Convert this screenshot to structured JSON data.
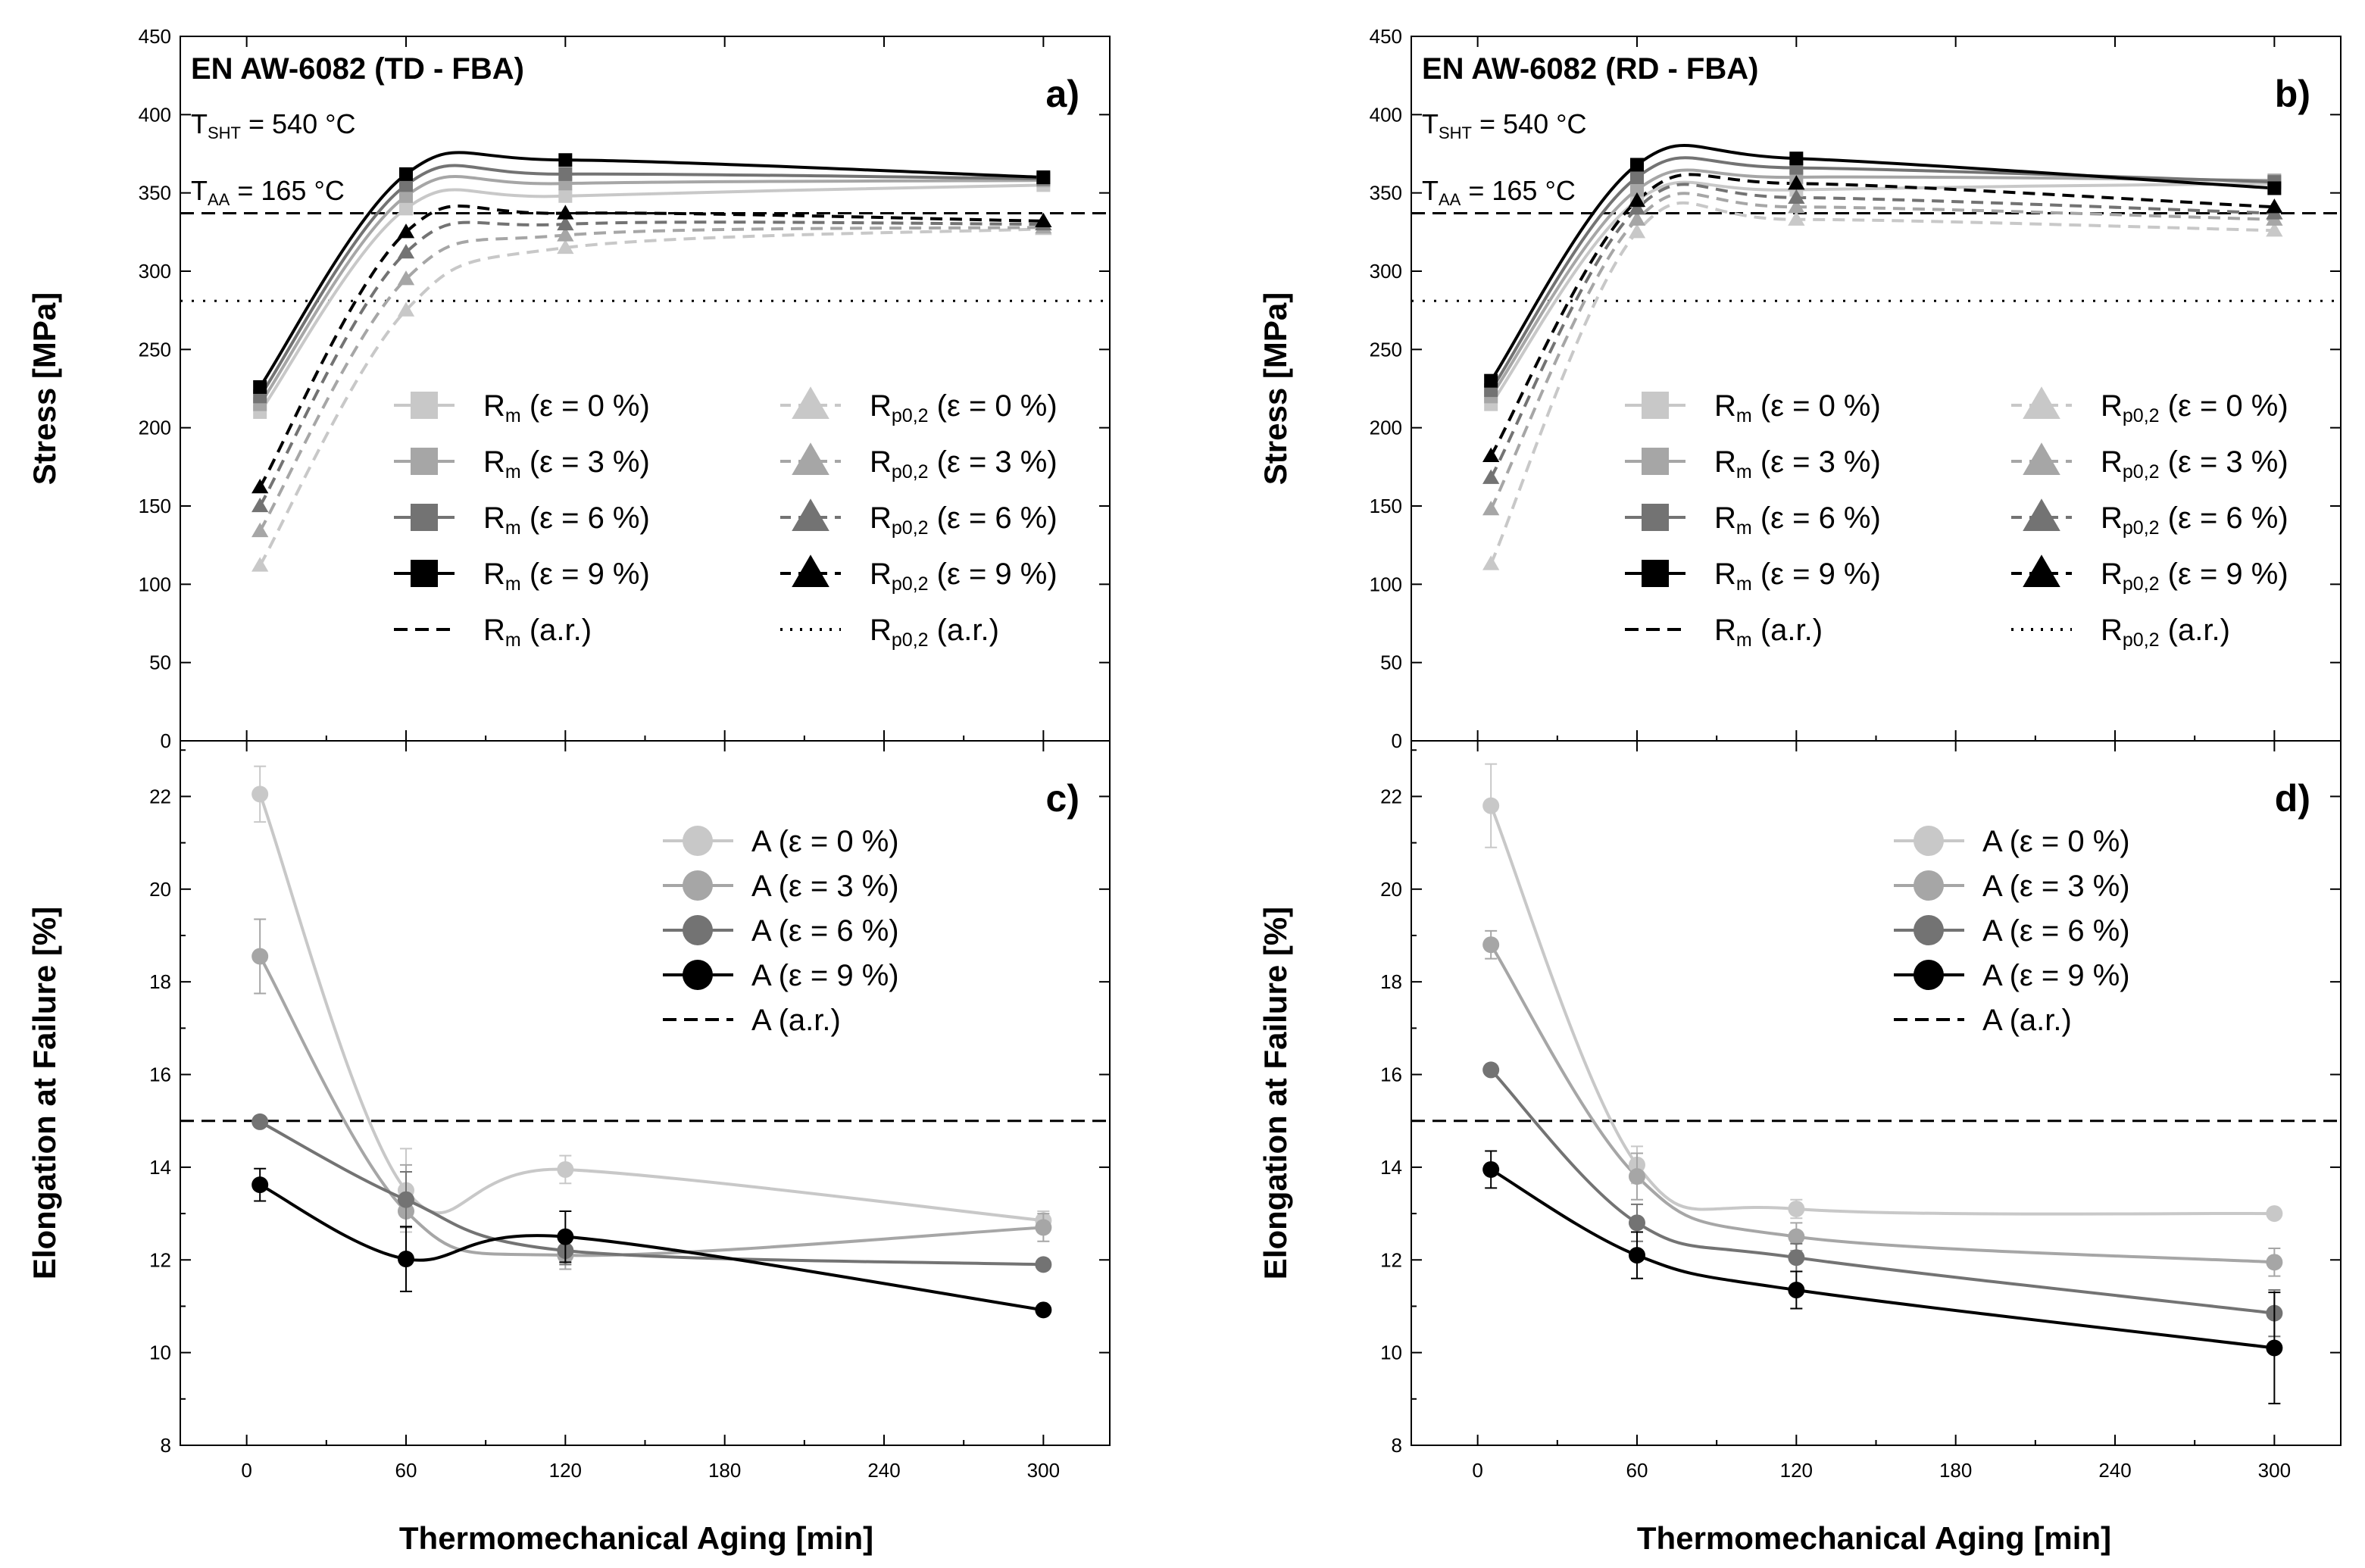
{
  "figure": {
    "x_axis_title": "Thermomechanical Aging [min]",
    "colors": {
      "e0": "#c8c8c8",
      "e3": "#a6a6a6",
      "e6": "#737373",
      "e9": "#000000"
    }
  },
  "chart_data": [
    {
      "id": "a",
      "type": "line",
      "panel_label": "a)",
      "title": "EN AW-6082 (TD - FBA)",
      "annotations": [
        {
          "main": "T",
          "sub": "SHT",
          "rest": " = 540 °C"
        },
        {
          "main": "T",
          "sub": "AA",
          "rest": " = 165 °C"
        }
      ],
      "xlabel": "Thermomechanical Aging [min]",
      "ylabel": "Stress [MPa]",
      "xlim": [
        -25,
        325
      ],
      "ylim": [
        0,
        450
      ],
      "xticks": [
        0,
        60,
        120,
        180,
        240,
        300
      ],
      "yticks": [
        0,
        50,
        100,
        150,
        200,
        250,
        300,
        350,
        400,
        450
      ],
      "hlines": [
        {
          "name": "Rm (a.r.)",
          "value": 337,
          "style": "dashed"
        },
        {
          "name": "Rp0,2 (a.r.)",
          "value": 281,
          "style": "dotted"
        }
      ],
      "series": [
        {
          "name": "Rm (ε = 0 %)",
          "key": "e0",
          "marker": "square",
          "line": "solid",
          "x": [
            5,
            60,
            120,
            300
          ],
          "y": [
            210,
            340,
            348,
            355
          ]
        },
        {
          "name": "Rm (ε = 3 %)",
          "key": "e3",
          "marker": "square",
          "line": "solid",
          "x": [
            5,
            60,
            120,
            300
          ],
          "y": [
            215,
            348,
            356,
            358
          ]
        },
        {
          "name": "Rm (ε = 6 %)",
          "key": "e6",
          "marker": "square",
          "line": "solid",
          "x": [
            5,
            60,
            120,
            300
          ],
          "y": [
            220,
            355,
            362,
            359
          ]
        },
        {
          "name": "Rm (ε = 9 %)",
          "key": "e9",
          "marker": "square",
          "line": "solid",
          "x": [
            5,
            60,
            120,
            300
          ],
          "y": [
            226,
            362,
            371,
            360
          ]
        },
        {
          "name": "Rp0,2 (ε = 0 %)",
          "key": "e0",
          "marker": "triangle",
          "line": "dashed",
          "x": [
            5,
            60,
            120,
            300
          ],
          "y": [
            112,
            275,
            315,
            327
          ]
        },
        {
          "name": "Rp0,2 (ε = 3 %)",
          "key": "e3",
          "marker": "triangle",
          "line": "dashed",
          "x": [
            5,
            60,
            120,
            300
          ],
          "y": [
            134,
            295,
            323,
            328
          ]
        },
        {
          "name": "Rp0,2 (ε = 6 %)",
          "key": "e6",
          "marker": "triangle",
          "line": "dashed",
          "x": [
            5,
            60,
            120,
            300
          ],
          "y": [
            150,
            312,
            330,
            330
          ]
        },
        {
          "name": "Rp0,2 (ε = 9 %)",
          "key": "e9",
          "marker": "triangle",
          "line": "dashed",
          "x": [
            5,
            60,
            120,
            300
          ],
          "y": [
            162,
            325,
            337,
            332
          ]
        }
      ],
      "legend": [
        {
          "base": "R",
          "sub": "m",
          "suffix": " (ε = 0 %)"
        },
        {
          "base": "R",
          "sub": "m",
          "suffix": " (ε = 3 %)"
        },
        {
          "base": "R",
          "sub": "m",
          "suffix": " (ε = 6 %)"
        },
        {
          "base": "R",
          "sub": "m",
          "suffix": " (ε = 9 %)"
        },
        {
          "base": "R",
          "sub": "m",
          "suffix": " (a.r.)"
        },
        {
          "base": "R",
          "sub": "p0,2",
          "suffix": " (ε = 0 %)"
        },
        {
          "base": "R",
          "sub": "p0,2",
          "suffix": " (ε = 3 %)"
        },
        {
          "base": "R",
          "sub": "p0,2",
          "suffix": " (ε = 6 %)"
        },
        {
          "base": "R",
          "sub": "p0,2",
          "suffix": " (ε = 9 %)"
        },
        {
          "base": "R",
          "sub": "p0,2",
          "suffix": " (a.r.)"
        }
      ]
    },
    {
      "id": "b",
      "type": "line",
      "panel_label": "b)",
      "title": "EN AW-6082 (RD - FBA)",
      "annotations": [
        {
          "main": "T",
          "sub": "SHT",
          "rest": " = 540 °C"
        },
        {
          "main": "T",
          "sub": "AA",
          "rest": " = 165 °C"
        }
      ],
      "xlabel": "Thermomechanical Aging [min]",
      "ylabel": "Stress [MPa]",
      "xlim": [
        -25,
        325
      ],
      "ylim": [
        0,
        450
      ],
      "xticks": [
        0,
        60,
        120,
        180,
        240,
        300
      ],
      "yticks": [
        0,
        50,
        100,
        150,
        200,
        250,
        300,
        350,
        400,
        450
      ],
      "hlines": [
        {
          "name": "Rm (a.r.)",
          "value": 337,
          "style": "dashed"
        },
        {
          "name": "Rp0,2 (a.r.)",
          "value": 281,
          "style": "dotted"
        }
      ],
      "series": [
        {
          "name": "Rm (ε = 0 %)",
          "key": "e0",
          "marker": "square",
          "line": "solid",
          "x": [
            5,
            60,
            120,
            300
          ],
          "y": [
            215,
            345,
            352,
            356
          ]
        },
        {
          "name": "Rm (ε = 3 %)",
          "key": "e3",
          "marker": "square",
          "line": "solid",
          "x": [
            5,
            60,
            120,
            300
          ],
          "y": [
            220,
            352,
            360,
            358
          ]
        },
        {
          "name": "Rm (ε = 6 %)",
          "key": "e6",
          "marker": "square",
          "line": "solid",
          "x": [
            5,
            60,
            120,
            300
          ],
          "y": [
            224,
            360,
            366,
            357
          ]
        },
        {
          "name": "Rm (ε = 9 %)",
          "key": "e9",
          "marker": "square",
          "line": "solid",
          "x": [
            5,
            60,
            120,
            300
          ],
          "y": [
            230,
            368,
            372,
            353
          ]
        },
        {
          "name": "Rp0,2 (ε = 0 %)",
          "key": "e0",
          "marker": "triangle",
          "line": "dashed",
          "x": [
            5,
            60,
            120,
            300
          ],
          "y": [
            113,
            325,
            333,
            326
          ]
        },
        {
          "name": "Rp0,2 (ε = 3 %)",
          "key": "e3",
          "marker": "triangle",
          "line": "dashed",
          "x": [
            5,
            60,
            120,
            300
          ],
          "y": [
            148,
            333,
            341,
            333
          ]
        },
        {
          "name": "Rp0,2 (ε = 6 %)",
          "key": "e6",
          "marker": "triangle",
          "line": "dashed",
          "x": [
            5,
            60,
            120,
            300
          ],
          "y": [
            168,
            340,
            347,
            337
          ]
        },
        {
          "name": "Rp0,2 (ε = 9 %)",
          "key": "e9",
          "marker": "triangle",
          "line": "dashed",
          "x": [
            5,
            60,
            120,
            300
          ],
          "y": [
            182,
            345,
            356,
            341
          ]
        }
      ],
      "legend": [
        {
          "base": "R",
          "sub": "m",
          "suffix": " (ε = 0 %)"
        },
        {
          "base": "R",
          "sub": "m",
          "suffix": " (ε = 3 %)"
        },
        {
          "base": "R",
          "sub": "m",
          "suffix": " (ε = 6 %)"
        },
        {
          "base": "R",
          "sub": "m",
          "suffix": " (ε = 9 %)"
        },
        {
          "base": "R",
          "sub": "m",
          "suffix": " (a.r.)"
        },
        {
          "base": "R",
          "sub": "p0,2",
          "suffix": " (ε = 0 %)"
        },
        {
          "base": "R",
          "sub": "p0,2",
          "suffix": " (ε = 3 %)"
        },
        {
          "base": "R",
          "sub": "p0,2",
          "suffix": " (ε = 6 %)"
        },
        {
          "base": "R",
          "sub": "p0,2",
          "suffix": " (ε = 9 %)"
        },
        {
          "base": "R",
          "sub": "p0,2",
          "suffix": " (a.r.)"
        }
      ]
    },
    {
      "id": "c",
      "type": "line",
      "panel_label": "c)",
      "xlabel": "Thermomechanical Aging [min]",
      "ylabel": "Elongation at Failure [%]",
      "xlim": [
        -25,
        325
      ],
      "ylim": [
        8,
        23.2
      ],
      "xticks": [
        0,
        60,
        120,
        180,
        240,
        300
      ],
      "yticks": [
        8,
        10,
        12,
        14,
        16,
        18,
        20,
        22
      ],
      "hlines": [
        {
          "name": "A (a.r.)",
          "value": 15,
          "style": "dashed"
        }
      ],
      "series": [
        {
          "name": "A (ε = 0 %)",
          "key": "e0",
          "marker": "circle",
          "line": "solid",
          "x": [
            5,
            60,
            120,
            300
          ],
          "y": [
            22.05,
            13.5,
            13.95,
            12.85
          ],
          "err": [
            0.6,
            0.9,
            0.3,
            0.2
          ]
        },
        {
          "name": "A (ε = 3 %)",
          "key": "e3",
          "marker": "circle",
          "line": "solid",
          "x": [
            5,
            60,
            120,
            300
          ],
          "y": [
            18.55,
            13.05,
            12.1,
            12.7
          ],
          "err": [
            0.8,
            1.0,
            0.3,
            0.3
          ]
        },
        {
          "name": "A (ε = 6 %)",
          "key": "e6",
          "marker": "circle",
          "line": "solid",
          "x": [
            5,
            60,
            120,
            300
          ],
          "y": [
            14.98,
            13.3,
            12.2,
            11.9
          ],
          "err": [
            0.1,
            0.6,
            0.3,
            0.1
          ]
        },
        {
          "name": "A (ε = 9 %)",
          "key": "e9",
          "marker": "circle",
          "line": "solid",
          "x": [
            5,
            60,
            120,
            300
          ],
          "y": [
            13.62,
            12.02,
            12.5,
            10.92
          ],
          "err": [
            0.35,
            0.7,
            0.55,
            0.1
          ]
        }
      ],
      "legend": [
        {
          "base": "A",
          "sub": "",
          "suffix": " (ε = 0 %)"
        },
        {
          "base": "A",
          "sub": "",
          "suffix": " (ε = 3 %)"
        },
        {
          "base": "A",
          "sub": "",
          "suffix": " (ε = 6 %)"
        },
        {
          "base": "A",
          "sub": "",
          "suffix": " (ε = 9 %)"
        },
        {
          "base": "A",
          "sub": "",
          "suffix": " (a.r.)"
        }
      ]
    },
    {
      "id": "d",
      "type": "line",
      "panel_label": "d)",
      "xlabel": "Thermomechanical Aging [min]",
      "ylabel": "Elongation at Failure [%]",
      "xlim": [
        -25,
        325
      ],
      "ylim": [
        8,
        23.2
      ],
      "xticks": [
        0,
        60,
        120,
        180,
        240,
        300
      ],
      "yticks": [
        8,
        10,
        12,
        14,
        16,
        18,
        20,
        22
      ],
      "hlines": [
        {
          "name": "A (a.r.)",
          "value": 15,
          "style": "dashed"
        }
      ],
      "series": [
        {
          "name": "A (ε = 0 %)",
          "key": "e0",
          "marker": "circle",
          "line": "solid",
          "x": [
            5,
            60,
            120,
            300
          ],
          "y": [
            21.8,
            14.05,
            13.1,
            13.0
          ],
          "err": [
            0.9,
            0.4,
            0.2,
            0.1
          ]
        },
        {
          "name": "A (ε = 3 %)",
          "key": "e3",
          "marker": "circle",
          "line": "solid",
          "x": [
            5,
            60,
            120,
            300
          ],
          "y": [
            18.8,
            13.8,
            12.5,
            11.95
          ],
          "err": [
            0.3,
            0.5,
            0.3,
            0.3
          ]
        },
        {
          "name": "A (ε = 6 %)",
          "key": "e6",
          "marker": "circle",
          "line": "solid",
          "x": [
            5,
            60,
            120,
            300
          ],
          "y": [
            16.1,
            12.8,
            12.05,
            10.85
          ],
          "err": [
            0.1,
            0.4,
            0.3,
            0.5
          ]
        },
        {
          "name": "A (ε = 9 %)",
          "key": "e9",
          "marker": "circle",
          "line": "solid",
          "x": [
            5,
            60,
            120,
            300
          ],
          "y": [
            13.95,
            12.1,
            11.35,
            10.1
          ],
          "err": [
            0.4,
            0.5,
            0.4,
            1.2
          ]
        }
      ],
      "legend": [
        {
          "base": "A",
          "sub": "",
          "suffix": " (ε = 0 %)"
        },
        {
          "base": "A",
          "sub": "",
          "suffix": " (ε = 3 %)"
        },
        {
          "base": "A",
          "sub": "",
          "suffix": " (ε = 6 %)"
        },
        {
          "base": "A",
          "sub": "",
          "suffix": " (ε = 9 %)"
        },
        {
          "base": "A",
          "sub": "",
          "suffix": " (a.r.)"
        }
      ]
    }
  ]
}
